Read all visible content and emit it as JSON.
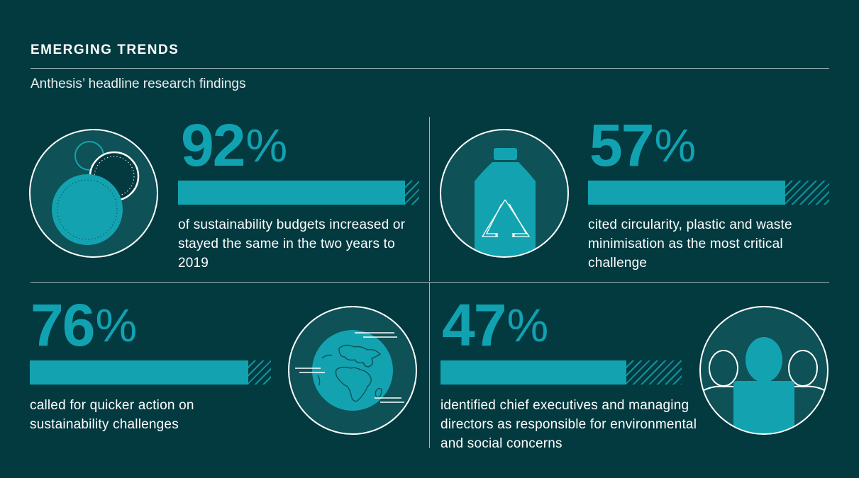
{
  "header": {
    "title": "EMERGING TRENDS",
    "subtitle": "Anthesis’ headline research findings"
  },
  "stats": [
    {
      "value": "92",
      "unit": "%",
      "fraction": 0.92,
      "description": "of sustainability budgets increased or stayed the same in the two years to 2019",
      "icon": "coins-icon"
    },
    {
      "value": "57",
      "unit": "%",
      "fraction": 0.57,
      "description": "cited circularity, plastic and waste minimisation as the most critical challenge",
      "icon": "recycling-bottle-icon"
    },
    {
      "value": "76",
      "unit": "%",
      "fraction": 0.76,
      "description": "called for quicker action on sustainability challenges",
      "icon": "globe-icon"
    },
    {
      "value": "47",
      "unit": "%",
      "fraction": 0.47,
      "description": "identified chief executives and managing directors as responsible for environmental and social concerns",
      "icon": "people-icon"
    }
  ],
  "colors": {
    "background": "#023a40",
    "accent": "#13a3b0",
    "icon_fill": "#0e5157",
    "line": "#9fb3b5"
  }
}
